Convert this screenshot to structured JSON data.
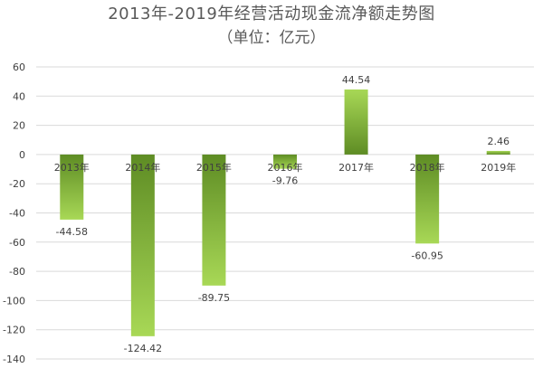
{
  "chart_data": {
    "type": "bar",
    "title": "2013年-2019年经营活动现金流净额走势图",
    "subtitle": "（单位：亿元）",
    "categories": [
      "2013年",
      "2014年",
      "2015年",
      "2016年",
      "2017年",
      "2018年",
      "2019年"
    ],
    "values": [
      -44.58,
      -124.42,
      -89.75,
      -9.76,
      44.54,
      -60.95,
      2.46
    ],
    "value_labels": [
      "-44.58",
      "-124.42",
      "-89.75",
      "-9.76",
      "44.54",
      "-60.95",
      "2.46"
    ],
    "ylim": [
      -140,
      60
    ],
    "yticks": [
      60,
      40,
      20,
      0,
      -20,
      -40,
      -60,
      -80,
      -100,
      -120,
      -140
    ],
    "grid": true,
    "legend": "none",
    "colors": {
      "bar_light": "#9bd04a",
      "bar_dark": "#5e8c24",
      "grid": "#d9d9d9",
      "text": "#404040"
    }
  }
}
